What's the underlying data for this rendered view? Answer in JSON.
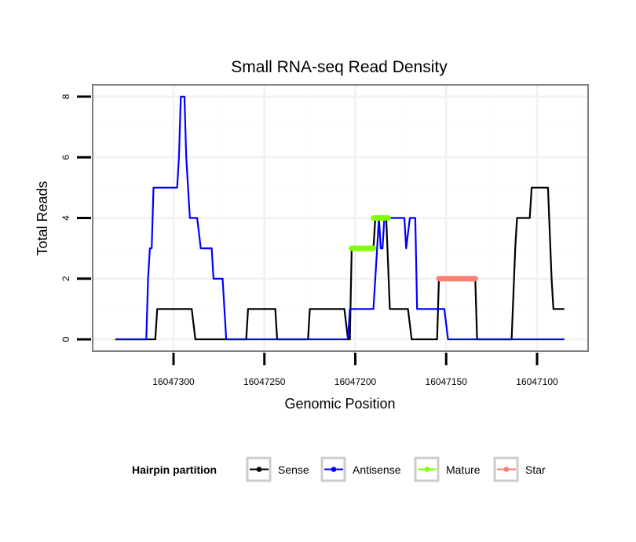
{
  "chart_data": {
    "type": "line",
    "title": "Small RNA-seq Read Density",
    "xlabel": "Genomic Position",
    "ylabel": "Total Reads",
    "x_reversed": true,
    "xlim": [
      16047332,
      16047070
    ],
    "ylim": [
      -0.3,
      8.3
    ],
    "x_ticks": [
      16047300,
      16047250,
      16047200,
      16047150,
      16047100
    ],
    "x_tick_labels": [
      "16047300",
      "16047250",
      "16047200",
      "16047150",
      "16047100"
    ],
    "y_ticks": [
      0,
      2,
      4,
      6,
      8
    ],
    "y_tick_labels": [
      "0",
      "2",
      "4",
      "6",
      "8"
    ],
    "grid": true,
    "legend": {
      "title": "Hairpin partition",
      "placement": "bottom",
      "entries": [
        {
          "name": "Sense",
          "color": "#000000"
        },
        {
          "name": "Antisense",
          "color": "#0000FF"
        },
        {
          "name": "Mature",
          "color": "#7FFF00"
        },
        {
          "name": "Star",
          "color": "#FA8072"
        }
      ]
    },
    "series": [
      {
        "name": "Sense",
        "color": "#000000",
        "style": "line",
        "points": [
          [
            16047332,
            0
          ],
          [
            16047310,
            0
          ],
          [
            16047309,
            1
          ],
          [
            16047290,
            1
          ],
          [
            16047288,
            0
          ],
          [
            16047260,
            0
          ],
          [
            16047259,
            1
          ],
          [
            16047244,
            1
          ],
          [
            16047243,
            0
          ],
          [
            16047226,
            0
          ],
          [
            16047225,
            1
          ],
          [
            16047206,
            1
          ],
          [
            16047204,
            0
          ],
          [
            16047203,
            0
          ],
          [
            16047202,
            3
          ],
          [
            16047190,
            3
          ],
          [
            16047189,
            4
          ],
          [
            16047183,
            4
          ],
          [
            16047181,
            1
          ],
          [
            16047171,
            1
          ],
          [
            16047169,
            0
          ],
          [
            16047155,
            0
          ],
          [
            16047154,
            2
          ],
          [
            16047134,
            2
          ],
          [
            16047133,
            0
          ],
          [
            16047114,
            0
          ],
          [
            16047112,
            3
          ],
          [
            16047111,
            4
          ],
          [
            16047104,
            4
          ],
          [
            16047103,
            5
          ],
          [
            16047094,
            5
          ],
          [
            16047092,
            2
          ],
          [
            16047091,
            1
          ],
          [
            16047085,
            1
          ]
        ]
      },
      {
        "name": "Antisense",
        "color": "#0000FF",
        "style": "line",
        "points": [
          [
            16047332,
            0
          ],
          [
            16047315,
            0
          ],
          [
            16047314,
            2
          ],
          [
            16047313,
            3
          ],
          [
            16047312,
            3
          ],
          [
            16047311,
            5
          ],
          [
            16047298,
            5
          ],
          [
            16047297,
            6
          ],
          [
            16047296,
            8
          ],
          [
            16047294,
            8
          ],
          [
            16047293,
            6
          ],
          [
            16047292,
            5
          ],
          [
            16047291,
            4
          ],
          [
            16047287,
            4
          ],
          [
            16047285,
            3
          ],
          [
            16047279,
            3
          ],
          [
            16047278,
            2
          ],
          [
            16047273,
            2
          ],
          [
            16047271,
            0
          ],
          [
            16047204,
            0
          ],
          [
            16047203,
            1
          ],
          [
            16047190,
            1
          ],
          [
            16047188,
            3
          ],
          [
            16047187,
            4
          ],
          [
            16047186,
            3
          ],
          [
            16047185,
            3
          ],
          [
            16047184,
            4
          ],
          [
            16047173,
            4
          ],
          [
            16047172,
            3
          ],
          [
            16047170,
            4
          ],
          [
            16047167,
            4
          ],
          [
            16047166,
            1
          ],
          [
            16047151,
            1
          ],
          [
            16047149,
            0
          ],
          [
            16047085,
            0
          ]
        ]
      },
      {
        "name": "Mature",
        "color": "#7FFF00",
        "style": "segments",
        "segments": [
          {
            "x0": 16047202,
            "x1": 16047190,
            "y": 3
          },
          {
            "x0": 16047190,
            "x1": 16047182,
            "y": 4
          }
        ]
      },
      {
        "name": "Star",
        "color": "#FA8072",
        "style": "segments",
        "segments": [
          {
            "x0": 16047154,
            "x1": 16047134,
            "y": 2
          }
        ]
      }
    ]
  }
}
